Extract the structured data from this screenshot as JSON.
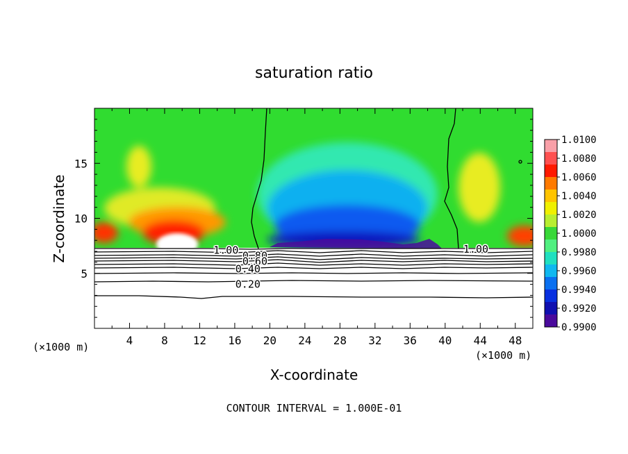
{
  "chart_data": {
    "type": "heatmap",
    "title": "saturation ratio",
    "xlabel": "X-coordinate",
    "ylabel": "Z-coordinate",
    "x_unit": "(×1000 m)",
    "footer": "CONTOUR INTERVAL = 1.000E-01",
    "xlim": [
      0,
      50
    ],
    "ylim": [
      0,
      20
    ],
    "xticks": [
      4,
      8,
      12,
      16,
      20,
      24,
      28,
      32,
      36,
      40,
      44,
      48
    ],
    "yticks": [
      5,
      10,
      15
    ],
    "colorbar": {
      "levels": [
        "1.0100",
        "1.0080",
        "1.0060",
        "1.0040",
        "1.0020",
        "1.0000",
        "0.9980",
        "0.9960",
        "0.9940",
        "0.9920",
        "0.9900"
      ],
      "colors": [
        "#f9a0a8",
        "#ff5050",
        "#ff1a00",
        "#ff7a00",
        "#ffc400",
        "#f0f000",
        "#b8ee30",
        "#38d838",
        "#50f080",
        "#20e0c0",
        "#10b8f0",
        "#0a70f0",
        "#0830e0",
        "#1010b0",
        "#4a0a9c"
      ]
    },
    "contour_labels": [
      {
        "text": "1.00",
        "x": 15.0,
        "z": 7.1
      },
      {
        "text": "0.80",
        "x": 18.3,
        "z": 6.6
      },
      {
        "text": "0.60",
        "x": 18.3,
        "z": 6.1
      },
      {
        "text": "0.40",
        "x": 17.5,
        "z": 5.4
      },
      {
        "text": "0.20",
        "x": 17.5,
        "z": 4.0
      },
      {
        "text": "1.00",
        "x": 43.5,
        "z": 7.2
      }
    ]
  }
}
